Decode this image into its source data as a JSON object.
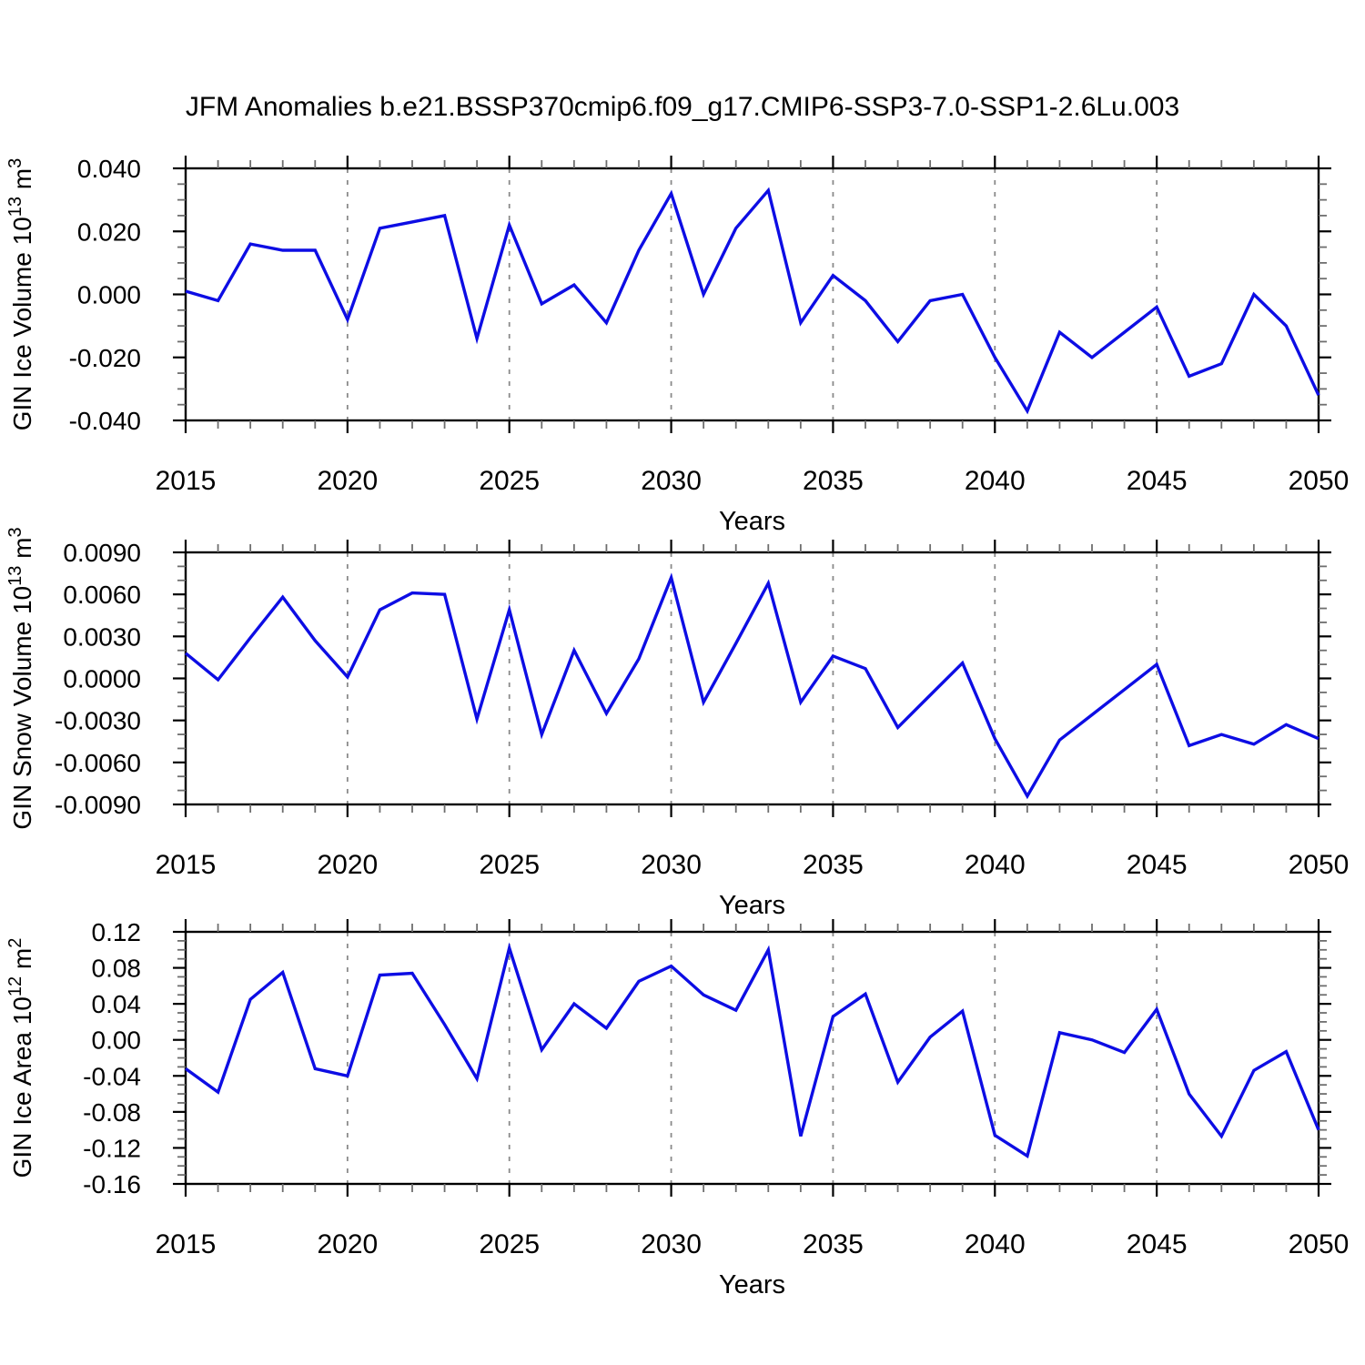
{
  "title": "JFM Anomalies b.e21.BSSP370cmip6.f09_g17.CMIP6-SSP3-7.0-SSP1-2.6Lu.003",
  "colors": {
    "background": "#ffffff",
    "line": "#0d0de4",
    "frame": "#000000",
    "major_tick": "#000000",
    "minor_tick": "#6e6e6e",
    "gridline": "#8a8a8a",
    "text": "#000000"
  },
  "x_axis": {
    "title": "Years",
    "min": 2015,
    "max": 2050,
    "major_step": 5,
    "minor_step": 1,
    "major_labels": [
      "2015",
      "2020",
      "2025",
      "2030",
      "2035",
      "2040",
      "2045",
      "2050"
    ],
    "gridline_years": [
      2020,
      2025,
      2030,
      2035,
      2040,
      2045
    ],
    "years": [
      2015,
      2016,
      2017,
      2018,
      2019,
      2020,
      2021,
      2022,
      2023,
      2024,
      2025,
      2026,
      2027,
      2028,
      2029,
      2030,
      2031,
      2032,
      2033,
      2034,
      2035,
      2036,
      2037,
      2038,
      2039,
      2040,
      2041,
      2042,
      2043,
      2044,
      2045,
      2046,
      2047,
      2048,
      2049,
      2050
    ]
  },
  "chart_data": [
    {
      "type": "line",
      "name": "gin-ice-volume",
      "ylabel_text": "GIN Ice Volume 10^13 m^3",
      "ylabel_parts": [
        {
          "t": "GIN Ice Volume 10",
          "sup": false
        },
        {
          "t": "13",
          "sup": true
        },
        {
          "t": " m",
          "sup": false
        },
        {
          "t": "3",
          "sup": true
        }
      ],
      "xlabel": "Years",
      "ylim": [
        -0.04,
        0.04
      ],
      "y_minor_step": 0.005,
      "y_ticks": [
        {
          "value": 0.04,
          "label": "0.040"
        },
        {
          "value": 0.02,
          "label": "0.020"
        },
        {
          "value": 0.0,
          "label": "0.000"
        },
        {
          "value": -0.02,
          "label": "-0.020"
        },
        {
          "value": -0.04,
          "label": "-0.040"
        }
      ],
      "values": [
        0.001,
        -0.002,
        0.016,
        0.014,
        0.014,
        -0.008,
        0.021,
        0.023,
        0.025,
        -0.014,
        0.022,
        -0.003,
        0.003,
        -0.009,
        0.014,
        0.032,
        0.0,
        0.021,
        0.033,
        -0.009,
        0.006,
        -0.002,
        -0.015,
        -0.002,
        0.0,
        -0.02,
        -0.037,
        -0.012,
        -0.02,
        -0.012,
        -0.004,
        -0.026,
        -0.022,
        0.0,
        -0.01,
        -0.032
      ]
    },
    {
      "type": "line",
      "name": "gin-snow-volume",
      "ylabel_text": "GIN Snow Volume 10^13 m^3",
      "ylabel_parts": [
        {
          "t": "GIN Snow Volume 10",
          "sup": false
        },
        {
          "t": "13",
          "sup": true
        },
        {
          "t": " m",
          "sup": false
        },
        {
          "t": "3",
          "sup": true
        }
      ],
      "xlabel": "Years",
      "ylim": [
        -0.009,
        0.009
      ],
      "y_minor_step": 0.001,
      "y_ticks": [
        {
          "value": 0.009,
          "label": "0.0090"
        },
        {
          "value": 0.006,
          "label": "0.0060"
        },
        {
          "value": 0.003,
          "label": "0.0030"
        },
        {
          "value": 0.0,
          "label": "0.0000"
        },
        {
          "value": -0.003,
          "label": "-0.0030"
        },
        {
          "value": -0.006,
          "label": "-0.0060"
        },
        {
          "value": -0.009,
          "label": "-0.0090"
        }
      ],
      "values": [
        0.0018,
        -0.0001,
        0.0029,
        0.0058,
        0.0027,
        0.0001,
        0.0049,
        0.0061,
        0.006,
        -0.0029,
        0.0049,
        -0.004,
        0.002,
        -0.0025,
        0.0014,
        0.0072,
        -0.0017,
        0.0025,
        0.0068,
        -0.0017,
        0.0016,
        0.0007,
        -0.0035,
        -0.0012,
        0.0011,
        -0.0043,
        -0.0084,
        -0.0044,
        -0.0026,
        -0.0008,
        0.001,
        -0.0048,
        -0.004,
        -0.0047,
        -0.0033,
        -0.0043
      ]
    },
    {
      "type": "line",
      "name": "gin-ice-area",
      "ylabel_text": "GIN Ice Area 10^12 m^2",
      "ylabel_parts": [
        {
          "t": "GIN Ice Area 10",
          "sup": false
        },
        {
          "t": "12",
          "sup": true
        },
        {
          "t": " m",
          "sup": false
        },
        {
          "t": "2",
          "sup": true
        }
      ],
      "xlabel": "Years",
      "ylim": [
        -0.16,
        0.12
      ],
      "y_minor_step": 0.01,
      "y_ticks": [
        {
          "value": 0.12,
          "label": "0.12"
        },
        {
          "value": 0.08,
          "label": "0.08"
        },
        {
          "value": 0.04,
          "label": "0.04"
        },
        {
          "value": 0.0,
          "label": "0.00"
        },
        {
          "value": -0.04,
          "label": "-0.04"
        },
        {
          "value": -0.08,
          "label": "-0.08"
        },
        {
          "value": -0.12,
          "label": "-0.12"
        },
        {
          "value": -0.16,
          "label": "-0.16"
        }
      ],
      "values": [
        -0.032,
        -0.058,
        0.045,
        0.075,
        -0.032,
        -0.04,
        0.072,
        0.074,
        0.017,
        -0.043,
        0.102,
        -0.011,
        0.04,
        0.013,
        0.065,
        0.082,
        0.05,
        0.033,
        0.1,
        -0.107,
        0.026,
        0.051,
        -0.047,
        0.003,
        0.032,
        -0.106,
        -0.129,
        0.008,
        0.0,
        -0.014,
        0.034,
        -0.06,
        -0.107,
        -0.034,
        -0.013,
        -0.1
      ]
    }
  ]
}
